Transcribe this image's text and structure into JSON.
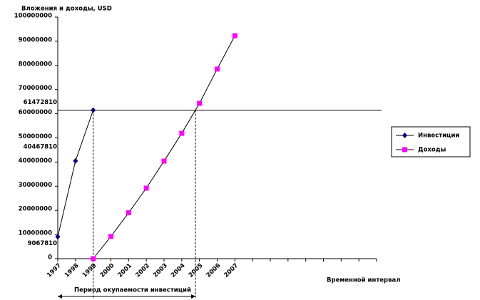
{
  "chart_data": {
    "type": "line",
    "y_axis_title": "Вложения и доходы, USD",
    "x_axis_title": "Временной интервал",
    "payback_label": "Период окупаемости инвестиций",
    "categories": [
      "1997",
      "1998",
      "1999",
      "2000",
      "2001",
      "2002",
      "2003",
      "2004",
      "2005",
      "2006",
      "2007",
      null,
      null,
      null,
      null,
      null,
      null,
      null,
      null
    ],
    "series": [
      {
        "name": "Инвестиции",
        "color": "#000080",
        "marker": "diamond",
        "values": [
          9067810,
          40467810,
          61472810,
          null,
          null,
          null,
          null,
          null,
          null,
          null,
          null,
          null,
          null,
          null,
          null,
          null,
          null,
          null,
          null
        ]
      },
      {
        "name": "Доходы",
        "color": "#ff00ff",
        "marker": "square",
        "values": [
          null,
          null,
          0,
          9200000,
          19000000,
          29200000,
          40400000,
          51900000,
          64300000,
          78500000,
          92300000,
          null,
          null,
          null,
          null,
          null,
          null,
          null,
          null
        ]
      }
    ],
    "ylim": [
      0,
      100000000
    ],
    "yticks": [
      0,
      10000000,
      20000000,
      30000000,
      40000000,
      50000000,
      60000000,
      70000000,
      80000000,
      90000000,
      100000000
    ],
    "legend": "right"
  }
}
